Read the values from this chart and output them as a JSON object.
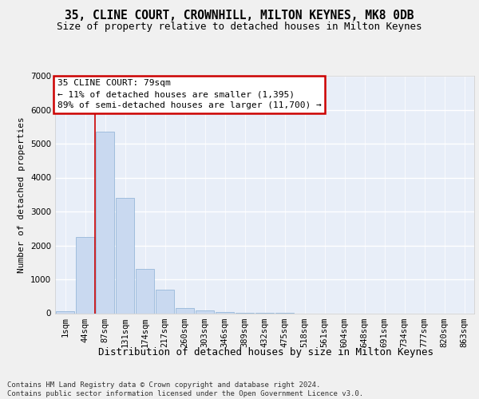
{
  "title1": "35, CLINE COURT, CROWNHILL, MILTON KEYNES, MK8 0DB",
  "title2": "Size of property relative to detached houses in Milton Keynes",
  "xlabel": "Distribution of detached houses by size in Milton Keynes",
  "ylabel": "Number of detached properties",
  "categories": [
    "1sqm",
    "44sqm",
    "87sqm",
    "131sqm",
    "174sqm",
    "217sqm",
    "260sqm",
    "303sqm",
    "346sqm",
    "389sqm",
    "432sqm",
    "475sqm",
    "518sqm",
    "561sqm",
    "604sqm",
    "648sqm",
    "691sqm",
    "734sqm",
    "777sqm",
    "820sqm",
    "863sqm"
  ],
  "values": [
    50,
    2250,
    5350,
    3400,
    1300,
    700,
    150,
    80,
    30,
    8,
    3,
    1,
    0,
    0,
    0,
    0,
    0,
    0,
    0,
    0,
    0
  ],
  "bar_color": "#c9d9f0",
  "bar_edge_color": "#8aafd4",
  "annotation_line1": "35 CLINE COURT: 79sqm",
  "annotation_line2": "← 11% of detached houses are smaller (1,395)",
  "annotation_line3": "89% of semi-detached houses are larger (11,700) →",
  "annotation_box_facecolor": "#ffffff",
  "annotation_box_edgecolor": "#cc0000",
  "red_line_x": 1.5,
  "ylim_max": 7000,
  "yticks": [
    0,
    1000,
    2000,
    3000,
    4000,
    5000,
    6000,
    7000
  ],
  "plot_bg_color": "#e8eef8",
  "grid_color": "#ffffff",
  "fig_bg_color": "#f0f0f0",
  "footer": "Contains HM Land Registry data © Crown copyright and database right 2024.\nContains public sector information licensed under the Open Government Licence v3.0.",
  "title1_fontsize": 10.5,
  "title2_fontsize": 9,
  "annot_fontsize": 8,
  "ylabel_fontsize": 8,
  "xlabel_fontsize": 9,
  "tick_fontsize": 7.5,
  "footer_fontsize": 6.5
}
